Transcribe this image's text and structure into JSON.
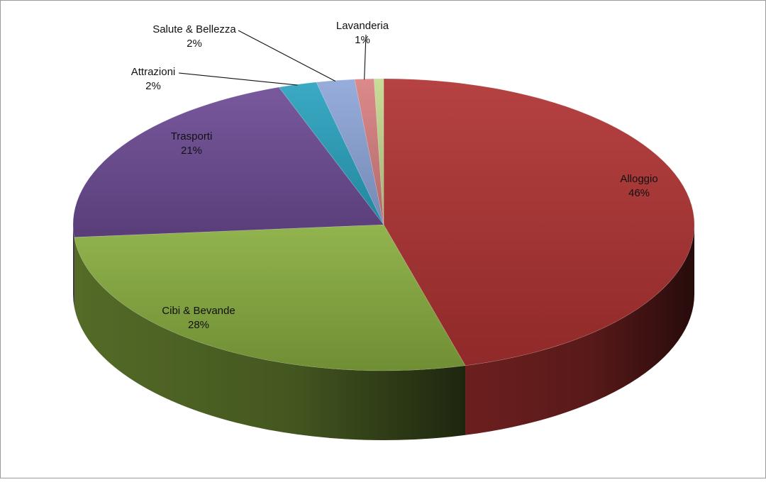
{
  "chart_data": {
    "type": "pie",
    "title": "",
    "style": "3d",
    "categories": [
      "Alloggio",
      "Cibi & Bevande",
      "Trasporti",
      "Attrazioni",
      "Salute & Bellezza",
      "Lavanderia",
      ""
    ],
    "values": [
      46,
      28,
      21,
      2,
      2,
      1,
      0.5
    ],
    "labels": [
      {
        "name": "Alloggio",
        "percent": "46%"
      },
      {
        "name": "Cibi & Bevande",
        "percent": "28%"
      },
      {
        "name": "Trasporti",
        "percent": "21%"
      },
      {
        "name": "Attrazioni",
        "percent": "2%"
      },
      {
        "name": "Salute & Bellezza",
        "percent": "2%"
      },
      {
        "name": "Lavanderia",
        "percent": "1%"
      },
      {
        "name": "",
        "percent": ""
      }
    ],
    "colors": [
      "#b03232",
      "#88ad3f",
      "#6c4b94",
      "#2aa3c0",
      "#8ea6d9",
      "#d98080",
      "#c4d98f"
    ],
    "legend": "none"
  }
}
